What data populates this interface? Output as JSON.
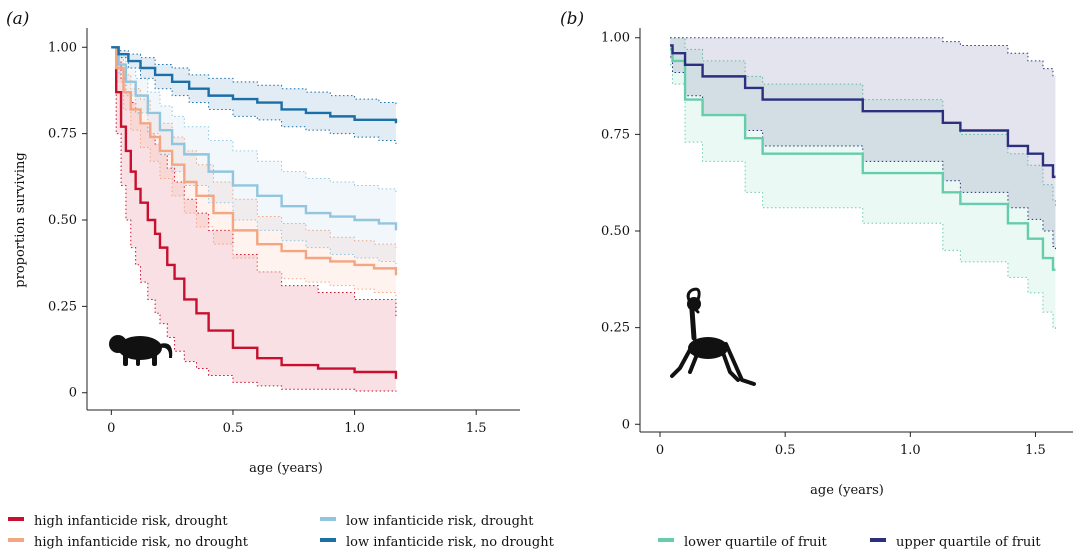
{
  "panel_labels": {
    "a": "(a)",
    "b": "(b)"
  },
  "colors": {
    "high_drought": "#c8102e",
    "high_no_drought": "#f4a582",
    "low_drought": "#92c5de",
    "low_no_drought": "#1a6fa8",
    "lower_quartile_fruit": "#66cdaa",
    "upper_quartile_fruit": "#2b2f7e"
  },
  "icons": {
    "a": "capuchin-monkey-silhouette-icon",
    "b": "spider-monkey-silhouette-icon"
  },
  "chart_data": [
    {
      "type": "line",
      "panel": "(a)",
      "xlabel": "age (years)",
      "ylabel": "proportion surviving",
      "xlim": [
        -0.1,
        1.68
      ],
      "ylim": [
        -0.05,
        1.05
      ],
      "xticks": [
        0,
        0.5,
        1.0,
        1.5
      ],
      "xtick_labels": [
        "0",
        "0.5",
        "1.0",
        "1.5"
      ],
      "yticks": [
        0,
        0.25,
        0.5,
        0.75,
        1.0
      ],
      "ytick_labels": [
        "0",
        "0.25",
        "0.50",
        "0.75",
        "1.00"
      ],
      "grid": false,
      "step": true,
      "series": [
        {
          "name": "high infanticide risk, drought",
          "color": "#c8102e",
          "x": [
            0,
            0.02,
            0.04,
            0.06,
            0.08,
            0.1,
            0.12,
            0.15,
            0.18,
            0.2,
            0.23,
            0.26,
            0.3,
            0.35,
            0.4,
            0.5,
            0.6,
            0.7,
            0.85,
            1.0,
            1.17
          ],
          "y": [
            1.0,
            0.87,
            0.77,
            0.7,
            0.64,
            0.59,
            0.55,
            0.5,
            0.46,
            0.42,
            0.37,
            0.33,
            0.27,
            0.23,
            0.18,
            0.13,
            0.1,
            0.08,
            0.07,
            0.06,
            0.04
          ],
          "ci_lower": [
            1.0,
            0.75,
            0.6,
            0.5,
            0.42,
            0.37,
            0.32,
            0.27,
            0.23,
            0.2,
            0.16,
            0.12,
            0.09,
            0.07,
            0.05,
            0.03,
            0.02,
            0.01,
            0.01,
            0.005,
            0.003
          ],
          "ci_upper": [
            1.0,
            0.96,
            0.91,
            0.87,
            0.84,
            0.81,
            0.78,
            0.75,
            0.72,
            0.69,
            0.65,
            0.61,
            0.56,
            0.52,
            0.47,
            0.4,
            0.35,
            0.31,
            0.29,
            0.27,
            0.22
          ]
        },
        {
          "name": "high infanticide risk, no drought",
          "color": "#f4a582",
          "x": [
            0,
            0.02,
            0.05,
            0.08,
            0.12,
            0.16,
            0.2,
            0.25,
            0.3,
            0.35,
            0.42,
            0.5,
            0.6,
            0.7,
            0.8,
            0.9,
            1.0,
            1.08,
            1.17
          ],
          "y": [
            1.0,
            0.94,
            0.87,
            0.82,
            0.78,
            0.74,
            0.7,
            0.66,
            0.61,
            0.57,
            0.52,
            0.47,
            0.43,
            0.41,
            0.39,
            0.38,
            0.37,
            0.36,
            0.34
          ],
          "ci_lower": [
            1.0,
            0.9,
            0.82,
            0.76,
            0.71,
            0.67,
            0.62,
            0.57,
            0.52,
            0.48,
            0.43,
            0.39,
            0.35,
            0.33,
            0.32,
            0.31,
            0.3,
            0.29,
            0.27
          ],
          "ci_upper": [
            1.0,
            0.97,
            0.92,
            0.88,
            0.85,
            0.81,
            0.78,
            0.74,
            0.7,
            0.66,
            0.61,
            0.56,
            0.51,
            0.49,
            0.47,
            0.45,
            0.44,
            0.43,
            0.42
          ]
        },
        {
          "name": "low infanticide risk, drought",
          "color": "#92c5de",
          "x": [
            0,
            0.03,
            0.06,
            0.1,
            0.15,
            0.2,
            0.25,
            0.3,
            0.4,
            0.5,
            0.6,
            0.7,
            0.8,
            0.9,
            1.0,
            1.1,
            1.17
          ],
          "y": [
            1.0,
            0.95,
            0.9,
            0.86,
            0.81,
            0.76,
            0.72,
            0.69,
            0.64,
            0.6,
            0.57,
            0.54,
            0.52,
            0.51,
            0.5,
            0.49,
            0.47
          ],
          "ci_lower": [
            1.0,
            0.92,
            0.86,
            0.81,
            0.75,
            0.69,
            0.64,
            0.6,
            0.55,
            0.5,
            0.47,
            0.44,
            0.42,
            0.4,
            0.39,
            0.38,
            0.36
          ],
          "ci_upper": [
            1.0,
            0.98,
            0.94,
            0.91,
            0.87,
            0.83,
            0.8,
            0.77,
            0.73,
            0.7,
            0.67,
            0.64,
            0.62,
            0.61,
            0.6,
            0.59,
            0.58
          ]
        },
        {
          "name": "low infanticide risk, no drought",
          "color": "#1a6fa8",
          "x": [
            0,
            0.03,
            0.07,
            0.12,
            0.18,
            0.25,
            0.32,
            0.4,
            0.5,
            0.6,
            0.7,
            0.8,
            0.9,
            1.0,
            1.1,
            1.17
          ],
          "y": [
            1.0,
            0.98,
            0.96,
            0.94,
            0.92,
            0.9,
            0.88,
            0.86,
            0.85,
            0.84,
            0.82,
            0.81,
            0.8,
            0.79,
            0.79,
            0.78
          ],
          "ci_lower": [
            1.0,
            0.97,
            0.94,
            0.91,
            0.88,
            0.86,
            0.84,
            0.82,
            0.8,
            0.79,
            0.77,
            0.76,
            0.75,
            0.74,
            0.73,
            0.72
          ],
          "ci_upper": [
            1.0,
            0.99,
            0.98,
            0.97,
            0.95,
            0.94,
            0.92,
            0.91,
            0.9,
            0.89,
            0.88,
            0.87,
            0.86,
            0.85,
            0.84,
            0.83
          ]
        }
      ]
    },
    {
      "type": "line",
      "panel": "(b)",
      "xlabel": "age (years)",
      "ylabel": "",
      "xlim": [
        -0.08,
        1.65
      ],
      "ylim": [
        -0.02,
        1.02
      ],
      "xticks": [
        0,
        0.5,
        1.0,
        1.5
      ],
      "xtick_labels": [
        "0",
        "0.5",
        "1.0",
        "1.5"
      ],
      "yticks": [
        0,
        0.25,
        0.5,
        0.75,
        1.0
      ],
      "ytick_labels": [
        "0",
        "0.25",
        "0.50",
        "0.75",
        "1.00"
      ],
      "grid": false,
      "step": true,
      "series": [
        {
          "name": "lower quartile of fruit",
          "color": "#66cdaa",
          "x": [
            0.04,
            0.05,
            0.1,
            0.17,
            0.34,
            0.41,
            0.81,
            1.13,
            1.2,
            1.39,
            1.47,
            1.53,
            1.57,
            1.58
          ],
          "y": [
            0.97,
            0.94,
            0.84,
            0.8,
            0.74,
            0.7,
            0.65,
            0.6,
            0.57,
            0.52,
            0.48,
            0.43,
            0.4,
            0.4
          ],
          "ci_lower": [
            0.93,
            0.88,
            0.73,
            0.68,
            0.6,
            0.56,
            0.52,
            0.45,
            0.42,
            0.38,
            0.34,
            0.29,
            0.25,
            0.24
          ],
          "ci_upper": [
            1.0,
            1.0,
            0.97,
            0.94,
            0.9,
            0.88,
            0.84,
            0.78,
            0.75,
            0.7,
            0.67,
            0.62,
            0.58,
            0.56
          ]
        },
        {
          "name": "upper quartile of fruit",
          "color": "#2b2f7e",
          "x": [
            0.04,
            0.05,
            0.1,
            0.17,
            0.34,
            0.41,
            0.81,
            1.13,
            1.2,
            1.39,
            1.47,
            1.53,
            1.57,
            1.58
          ],
          "y": [
            0.98,
            0.96,
            0.93,
            0.9,
            0.87,
            0.84,
            0.81,
            0.78,
            0.76,
            0.72,
            0.7,
            0.67,
            0.64,
            0.64
          ],
          "ci_lower": [
            0.95,
            0.91,
            0.85,
            0.8,
            0.76,
            0.72,
            0.68,
            0.63,
            0.6,
            0.56,
            0.53,
            0.5,
            0.46,
            0.45
          ],
          "ci_upper": [
            1.0,
            1.0,
            1.0,
            1.0,
            1.0,
            1.0,
            1.0,
            0.99,
            0.98,
            0.96,
            0.94,
            0.92,
            0.9,
            0.9
          ]
        }
      ]
    }
  ],
  "legend": [
    {
      "label": "high infanticide risk, drought",
      "color": "#c8102e"
    },
    {
      "label": "high infanticide risk, no drought",
      "color": "#f4a582"
    },
    {
      "label": "low infanticide risk, drought",
      "color": "#92c5de"
    },
    {
      "label": "low infanticide risk, no drought",
      "color": "#1a6fa8"
    },
    {
      "label": "lower quartile of fruit",
      "color": "#66cdaa"
    },
    {
      "label": "upper quartile of fruit",
      "color": "#2b2f7e"
    }
  ]
}
